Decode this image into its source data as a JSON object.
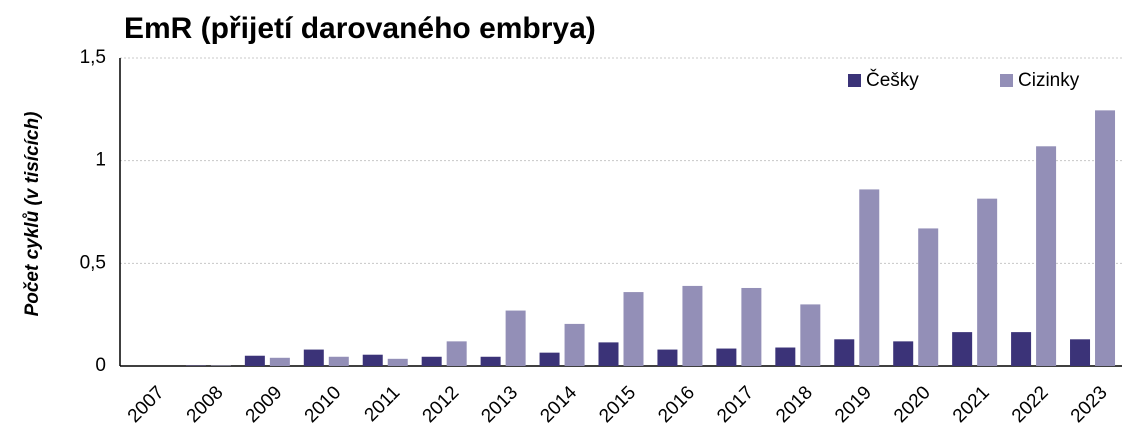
{
  "chart_data": {
    "type": "bar",
    "title": "EmR (přijetí darovaného embrya)",
    "y_label": "Počet cyklů (v tisících)",
    "categories": [
      "2007",
      "2008",
      "2009",
      "2010",
      "2011",
      "2012",
      "2013",
      "2014",
      "2015",
      "2016",
      "2017",
      "2018",
      "2019",
      "2020",
      "2021",
      "2022",
      "2023"
    ],
    "series": [
      {
        "name": "Češky",
        "color": "#3b3378",
        "values": [
          0,
          0.002,
          0.05,
          0.08,
          0.055,
          0.045,
          0.045,
          0.065,
          0.115,
          0.08,
          0.085,
          0.09,
          0.13,
          0.12,
          0.165,
          0.165,
          0.13
        ]
      },
      {
        "name": "Cizinky",
        "color": "#938fb7",
        "values": [
          0,
          0.002,
          0.04,
          0.045,
          0.035,
          0.12,
          0.27,
          0.205,
          0.36,
          0.39,
          0.38,
          0.3,
          0.86,
          0.67,
          0.815,
          1.07,
          1.245
        ]
      }
    ],
    "ylim": [
      0,
      1.5
    ],
    "yticks": [
      0,
      {
        "value": 0.5,
        "label": "0,5"
      },
      1,
      {
        "value": 1.5,
        "label": "1,5"
      }
    ],
    "grid": true,
    "legend": "top-right"
  }
}
